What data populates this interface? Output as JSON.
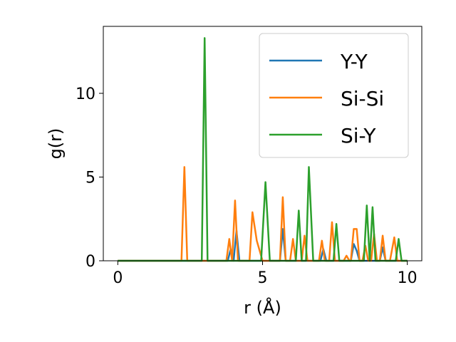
{
  "chart_data": {
    "type": "line",
    "xlabel": "r (Å)",
    "ylabel": "g(r)",
    "xlim": [
      -0.5,
      10.5
    ],
    "ylim": [
      0,
      14
    ],
    "xticks": [
      0,
      5,
      10
    ],
    "yticks": [
      0,
      5,
      10
    ],
    "grid": false,
    "legend_position": "top-right",
    "series": [
      {
        "name": "Y-Y",
        "color": "#1f77b4",
        "x": [
          0,
          3.8,
          3.9,
          4.0,
          4.1,
          4.2,
          4.3,
          5.6,
          5.7,
          5.8,
          5.9,
          7.0,
          7.1,
          7.2,
          8.05,
          8.15,
          8.25,
          8.35,
          9.05,
          9.15,
          9.25,
          10.0
        ],
        "y": [
          0,
          0,
          0.7,
          0,
          1.8,
          0,
          0,
          0,
          1.9,
          0,
          0,
          0,
          0.7,
          0,
          0,
          1.0,
          0.6,
          0,
          0,
          0.8,
          0,
          0
        ]
      },
      {
        "name": "Si-Si",
        "color": "#ff7f0e",
        "x": [
          0,
          2.2,
          2.3,
          2.4,
          3.75,
          3.85,
          3.95,
          4.05,
          4.15,
          4.25,
          4.55,
          4.65,
          4.8,
          5.0,
          5.6,
          5.7,
          5.8,
          5.95,
          6.05,
          6.15,
          6.35,
          6.45,
          6.55,
          6.95,
          7.05,
          7.15,
          7.3,
          7.4,
          7.5,
          7.8,
          7.9,
          8.0,
          8.05,
          8.15,
          8.25,
          8.35,
          8.45,
          8.55,
          8.65,
          8.75,
          8.85,
          8.95,
          9.05,
          9.15,
          9.25,
          9.4,
          9.55,
          9.65,
          9.75,
          9.85,
          10.0
        ],
        "y": [
          0,
          0,
          5.6,
          0,
          0,
          1.3,
          0,
          3.6,
          0,
          0,
          0,
          2.9,
          1.2,
          0,
          0,
          3.8,
          0,
          0,
          1.3,
          0,
          0,
          1.5,
          0,
          0,
          1.2,
          0,
          0,
          2.3,
          0,
          0,
          0.3,
          0,
          0,
          1.9,
          1.9,
          0,
          0,
          0.9,
          0,
          0,
          1.6,
          0,
          0,
          1.5,
          0,
          0,
          1.4,
          0,
          0,
          0,
          0
        ]
      },
      {
        "name": "Si-Y",
        "color": "#2ca02c",
        "x": [
          0,
          2.9,
          3.0,
          3.1,
          4.95,
          5.1,
          5.25,
          6.15,
          6.25,
          6.35,
          6.5,
          6.6,
          6.75,
          7.45,
          7.55,
          7.65,
          8.5,
          8.6,
          8.7,
          8.8,
          8.9,
          9.6,
          9.7,
          9.8,
          10.0
        ],
        "y": [
          0,
          0,
          13.3,
          0,
          0,
          4.7,
          0,
          0,
          3.0,
          0,
          0,
          5.6,
          0,
          0,
          2.2,
          0,
          0,
          3.3,
          0,
          3.2,
          0,
          0,
          1.3,
          0,
          0
        ]
      }
    ]
  }
}
